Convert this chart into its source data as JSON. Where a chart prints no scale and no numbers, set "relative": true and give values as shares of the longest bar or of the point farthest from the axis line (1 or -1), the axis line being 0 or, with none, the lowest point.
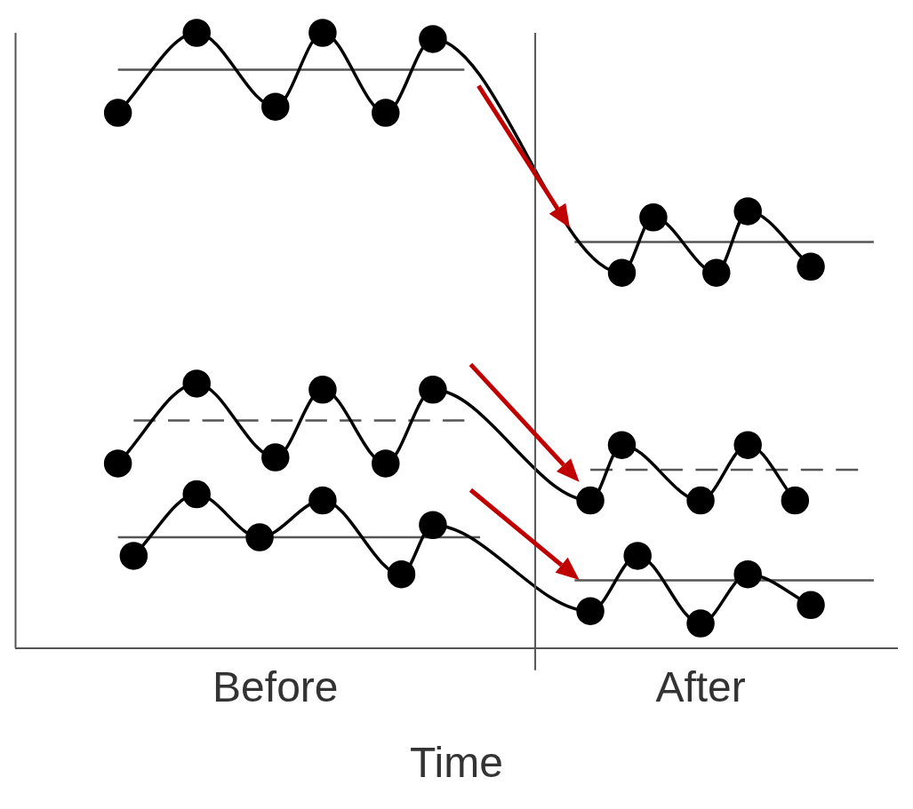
{
  "chart_data": {
    "type": "line",
    "xlabel": "Time",
    "relative": true,
    "tick_labels": "x",
    "grid": false,
    "legend": false,
    "categories": [
      null,
      null,
      null,
      null,
      null,
      null,
      null,
      null,
      null,
      null,
      null,
      null,
      null,
      null,
      null,
      null,
      "Before",
      null,
      null,
      null,
      null,
      null,
      null,
      null,
      null,
      null,
      null,
      null,
      null,
      null,
      null,
      null,
      null,
      null,
      null,
      null,
      null,
      null,
      null,
      null,
      null,
      null,
      null,
      "After",
      null,
      null,
      null,
      null,
      null,
      null,
      null,
      null,
      null,
      null,
      null,
      null
    ],
    "series": [
      {
        "color": "#000000",
        "marker": "circle",
        "line_style": "solid",
        "values": [
          null,
          null,
          null,
          null,
          null,
          null,
          0.87,
          null,
          null,
          null,
          null,
          1.0,
          null,
          null,
          null,
          null,
          0.88,
          null,
          null,
          1.0,
          null,
          null,
          null,
          0.87,
          null,
          null,
          0.99,
          null,
          null,
          null,
          null,
          null,
          null,
          null,
          null,
          null,
          null,
          null,
          0.61,
          null,
          0.7,
          null,
          null,
          null,
          0.61,
          null,
          0.71,
          null,
          null,
          null,
          0.62,
          null,
          null,
          null,
          null,
          null
        ]
      },
      {
        "color": "#000000",
        "marker": "circle",
        "line_style": "solid",
        "values": [
          null,
          null,
          null,
          null,
          null,
          null,
          0.3,
          null,
          null,
          null,
          null,
          0.43,
          null,
          null,
          null,
          null,
          0.31,
          null,
          null,
          0.42,
          null,
          null,
          null,
          0.3,
          null,
          null,
          0.42,
          null,
          null,
          null,
          null,
          null,
          null,
          null,
          null,
          null,
          0.24,
          null,
          0.33,
          null,
          null,
          null,
          null,
          0.24,
          null,
          null,
          0.33,
          null,
          null,
          0.24,
          null,
          null,
          null,
          null,
          null,
          null
        ]
      },
      {
        "color": "#000000",
        "marker": "circle",
        "line_style": "solid",
        "values": [
          null,
          null,
          null,
          null,
          null,
          null,
          null,
          0.15,
          null,
          null,
          null,
          0.25,
          null,
          null,
          null,
          0.18,
          null,
          null,
          null,
          0.24,
          null,
          null,
          null,
          null,
          0.12,
          null,
          0.2,
          null,
          null,
          null,
          null,
          null,
          null,
          null,
          null,
          null,
          0.06,
          null,
          null,
          0.15,
          null,
          null,
          null,
          0.04,
          null,
          null,
          0.12,
          null,
          null,
          null,
          0.07,
          null,
          null,
          null,
          null,
          null
        ]
      },
      {
        "color": "#555555",
        "marker": "none",
        "line_style": "solid",
        "values": [
          null,
          null,
          null,
          null,
          null,
          null,
          0.94,
          null,
          null,
          null,
          null,
          null,
          null,
          null,
          null,
          null,
          null,
          null,
          null,
          null,
          null,
          null,
          null,
          null,
          null,
          null,
          null,
          null,
          0.94,
          null,
          null,
          null,
          null,
          null,
          null,
          null,
          null,
          null,
          null,
          null,
          null,
          null,
          null,
          null,
          null,
          null,
          null,
          null,
          null,
          null,
          null,
          null,
          null,
          null,
          null,
          null
        ]
      },
      {
        "color": "#555555",
        "marker": "none",
        "line_style": "solid",
        "values": [
          null,
          null,
          null,
          null,
          null,
          null,
          null,
          null,
          null,
          null,
          null,
          null,
          null,
          null,
          null,
          null,
          null,
          null,
          null,
          null,
          null,
          null,
          null,
          null,
          null,
          null,
          null,
          null,
          null,
          null,
          null,
          null,
          null,
          null,
          null,
          0.66,
          null,
          null,
          null,
          null,
          null,
          null,
          null,
          null,
          null,
          null,
          null,
          null,
          null,
          null,
          null,
          null,
          null,
          null,
          0.66,
          null
        ]
      },
      {
        "color": "#555555",
        "marker": "none",
        "line_style": "dashed",
        "values": [
          null,
          null,
          null,
          null,
          null,
          null,
          null,
          0.37,
          null,
          null,
          null,
          null,
          null,
          null,
          null,
          null,
          null,
          null,
          null,
          null,
          null,
          null,
          null,
          null,
          null,
          null,
          null,
          null,
          0.37,
          null,
          null,
          null,
          null,
          null,
          null,
          null,
          null,
          null,
          null,
          null,
          null,
          null,
          null,
          null,
          null,
          null,
          null,
          null,
          null,
          null,
          null,
          null,
          null,
          null,
          null,
          null
        ]
      },
      {
        "color": "#555555",
        "marker": "none",
        "line_style": "dashed",
        "values": [
          null,
          null,
          null,
          null,
          null,
          null,
          null,
          null,
          null,
          null,
          null,
          null,
          null,
          null,
          null,
          null,
          null,
          null,
          null,
          null,
          null,
          null,
          null,
          null,
          null,
          null,
          null,
          null,
          null,
          null,
          null,
          null,
          null,
          null,
          null,
          null,
          0.29,
          null,
          null,
          null,
          null,
          null,
          null,
          null,
          null,
          null,
          null,
          null,
          null,
          null,
          null,
          null,
          null,
          0.29,
          null,
          null
        ]
      },
      {
        "color": "#555555",
        "marker": "none",
        "line_style": "solid",
        "values": [
          null,
          null,
          null,
          null,
          null,
          null,
          0.18,
          null,
          null,
          null,
          null,
          null,
          null,
          null,
          null,
          null,
          null,
          null,
          null,
          null,
          null,
          null,
          null,
          null,
          null,
          null,
          null,
          null,
          null,
          0.18,
          null,
          null,
          null,
          null,
          null,
          null,
          null,
          null,
          null,
          null,
          null,
          null,
          null,
          null,
          null,
          null,
          null,
          null,
          null,
          null,
          null,
          null,
          null,
          null,
          null,
          null
        ]
      },
      {
        "color": "#555555",
        "marker": "none",
        "line_style": "solid",
        "values": [
          null,
          null,
          null,
          null,
          null,
          null,
          null,
          null,
          null,
          null,
          null,
          null,
          null,
          null,
          null,
          null,
          null,
          null,
          null,
          null,
          null,
          null,
          null,
          null,
          null,
          null,
          null,
          null,
          null,
          null,
          null,
          null,
          null,
          null,
          null,
          0.11,
          null,
          null,
          null,
          null,
          null,
          null,
          null,
          null,
          null,
          null,
          null,
          null,
          null,
          null,
          null,
          null,
          null,
          null,
          0.11,
          null
        ]
      }
    ]
  }
}
